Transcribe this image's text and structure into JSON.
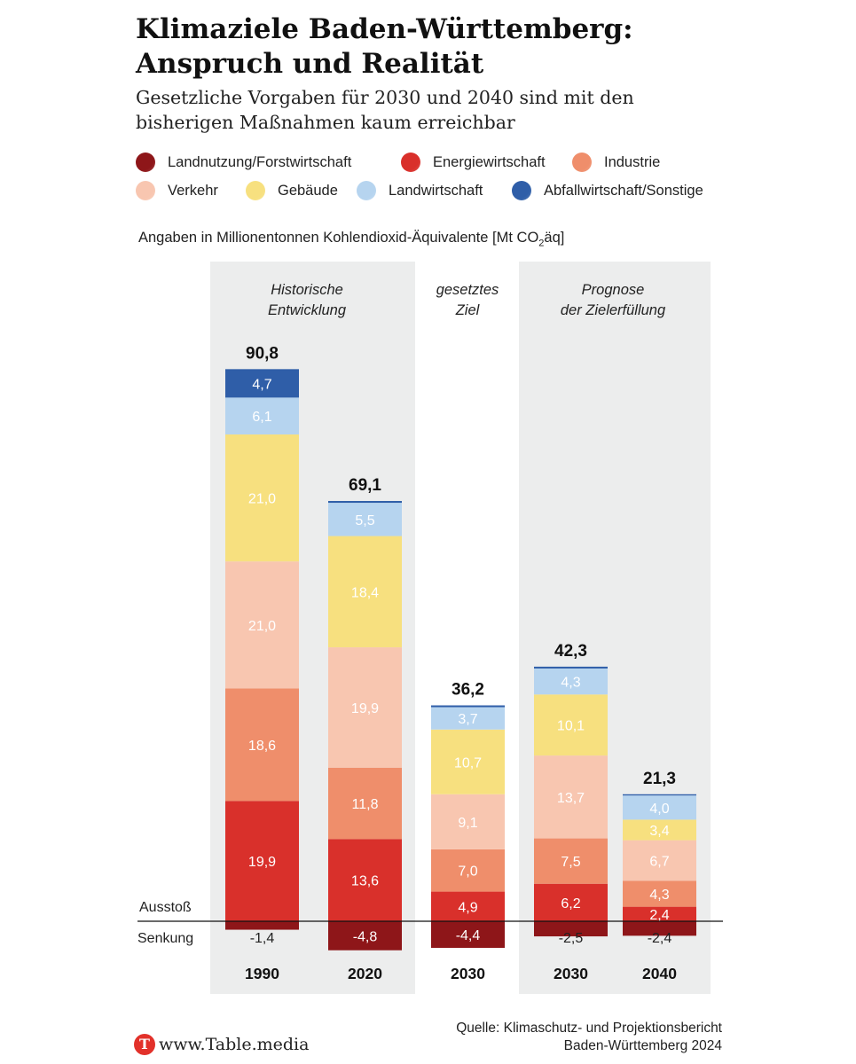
{
  "title": "Klimaziele Baden-Württemberg:\nAnspruch und Realität",
  "subtitle": "Gesetzliche Vorgaben für 2030 und 2040 sind mit den\nbisherigen Maßnahmen kaum erreichbar",
  "unit_note_prefix": "Angaben in Millionentonnen Kohlendioxid-Äquivalente [Mt CO",
  "unit_note_sub": "2",
  "unit_note_suffix": "äq]",
  "legend": [
    {
      "label": "Landnutzung/Forstwirtschaft",
      "color": "#8e1619"
    },
    {
      "label": "Energiewirtschaft",
      "color": "#d9302b"
    },
    {
      "label": "Industrie",
      "color": "#ef8e6b"
    },
    {
      "label": "Verkehr",
      "color": "#f8c6b0"
    },
    {
      "label": "Gebäude",
      "color": "#f7e07f"
    },
    {
      "label": "Landwirtschaft",
      "color": "#b6d4ef"
    },
    {
      "label": "Abfallwirtschaft/Sonstige",
      "color": "#2f5ea8"
    }
  ],
  "chart_data": {
    "type": "bar",
    "stacked": true,
    "title": "Klimaziele Baden-Württemberg: Anspruch und Realität",
    "subtitle": "Gesetzliche Vorgaben für 2030 und 2040 sind mit den bisherigen Maßnahmen kaum erreichbar",
    "ylabel": "Angaben in Millionentonnen Kohlendioxid-Äquivalente [Mt CO2äq]",
    "xlabel": "",
    "grid": false,
    "legend_position": "top",
    "categories": [
      "1990",
      "2020",
      "2030",
      "2030",
      "2040"
    ],
    "totals": [
      "90,8",
      "69,1",
      "36,2",
      "42,3",
      "21,3"
    ],
    "groups": [
      {
        "label": "Historische\nEntwicklung",
        "shaded": true
      },
      {
        "label": "gesetztes\nZiel",
        "shaded": false
      },
      {
        "label": "Prognose\nder Zielerfüllung",
        "shaded": true
      }
    ],
    "zero_line_labels": {
      "above": "Ausstoß",
      "below": "Senkung"
    },
    "series": [
      {
        "name": "Landnutzung/Forstwirtschaft",
        "color": "#8e1619",
        "values": [
          -1.4,
          -4.8,
          -4.4,
          -2.5,
          -2.4
        ]
      },
      {
        "name": "Energiewirtschaft",
        "color": "#d9302b",
        "values": [
          19.9,
          13.6,
          4.9,
          6.2,
          2.4
        ]
      },
      {
        "name": "Industrie",
        "color": "#ef8e6b",
        "values": [
          18.6,
          11.8,
          7.0,
          7.5,
          4.3
        ]
      },
      {
        "name": "Verkehr",
        "color": "#f8c6b0",
        "values": [
          21.0,
          19.9,
          9.1,
          13.7,
          6.7
        ]
      },
      {
        "name": "Gebäude",
        "color": "#f7e07f",
        "values": [
          21.0,
          18.4,
          10.7,
          10.1,
          3.4
        ]
      },
      {
        "name": "Landwirtschaft",
        "color": "#b6d4ef",
        "values": [
          6.1,
          5.5,
          3.7,
          4.3,
          4.0
        ]
      },
      {
        "name": "Abfallwirtschaft/Sonstige",
        "color": "#2f5ea8",
        "values": [
          4.7,
          0.3,
          0.3,
          0.3,
          0.2
        ]
      }
    ],
    "data_labels": [
      [
        "-1,4",
        "-4,8",
        "-4,4",
        "-2,5",
        "-2,4"
      ],
      [
        "19,9",
        "13,6",
        "4,9",
        "6,2",
        "2,4"
      ],
      [
        "18,6",
        "11,8",
        "7,0",
        "7,5",
        "4,3"
      ],
      [
        "21,0",
        "19,9",
        "9,1",
        "13,7",
        "6,7"
      ],
      [
        "21,0",
        "18,4",
        "10,7",
        "10,1",
        "3,4"
      ],
      [
        "6,1",
        "5,5",
        "3,7",
        "4,3",
        "4,0"
      ],
      [
        "4,7",
        "",
        "",
        "",
        ""
      ]
    ]
  },
  "source": "Quelle: Klimaschutz- und Projektionsbericht\nBaden-Württemberg 2024",
  "brand": {
    "logo_letter": "T",
    "text": "www.Table.media"
  }
}
